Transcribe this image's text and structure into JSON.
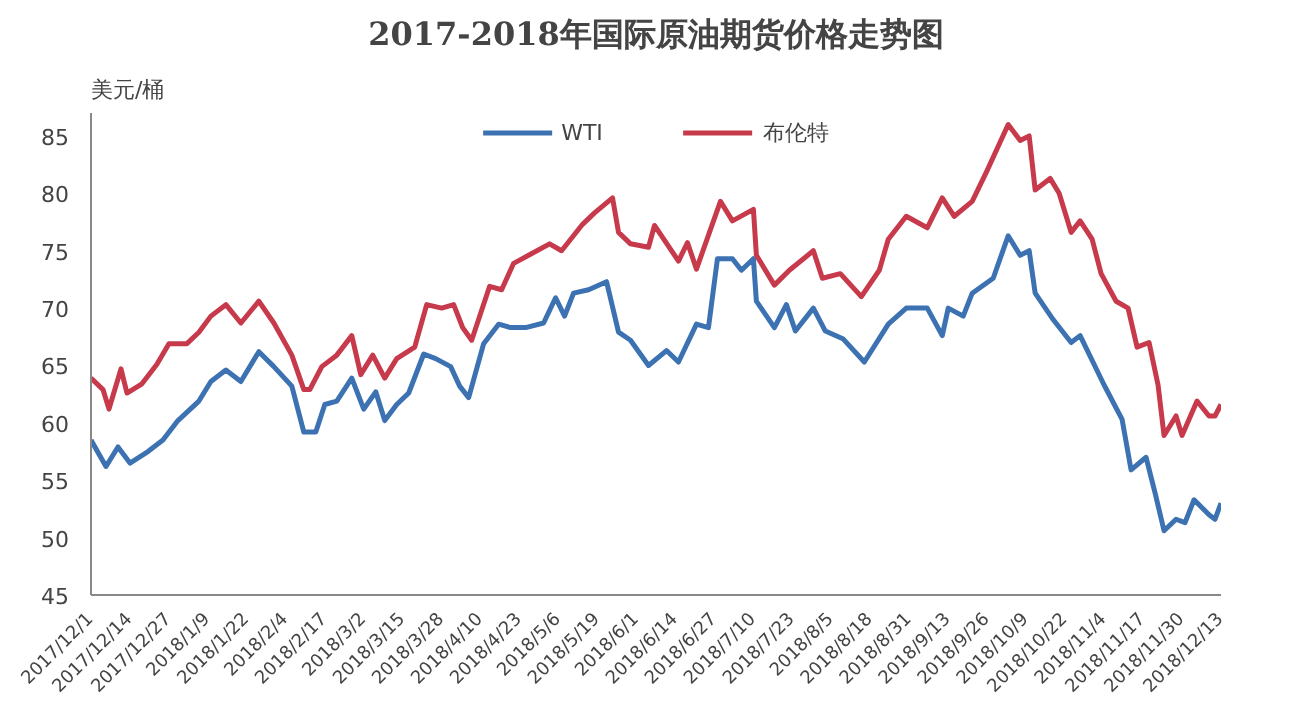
{
  "chart_data": {
    "type": "line",
    "title": "2017-2018年国际原油期货价格走势图",
    "ylabel": "美元/桶",
    "legend": "top",
    "grid": false,
    "line_style": "solid",
    "marker": "none",
    "xlim": [
      "2017-12-01",
      "2018-12-13"
    ],
    "ylim": [
      45,
      87
    ],
    "yticks": [
      45,
      50,
      55,
      60,
      65,
      70,
      75,
      80,
      85
    ],
    "xticks": [
      {
        "value": "2017-12-01",
        "label": "2017/12/1"
      },
      {
        "value": "2017-12-14",
        "label": "2017/12/14"
      },
      {
        "value": "2017-12-27",
        "label": "2017/12/27"
      },
      {
        "value": "2018-01-09",
        "label": "2018/1/9"
      },
      {
        "value": "2018-01-22",
        "label": "2018/1/22"
      },
      {
        "value": "2018-02-04",
        "label": "2018/2/4"
      },
      {
        "value": "2018-02-17",
        "label": "2018/2/17"
      },
      {
        "value": "2018-03-02",
        "label": "2018/3/2"
      },
      {
        "value": "2018-03-15",
        "label": "2018/3/15"
      },
      {
        "value": "2018-03-28",
        "label": "2018/3/28"
      },
      {
        "value": "2018-04-10",
        "label": "2018/4/10"
      },
      {
        "value": "2018-04-23",
        "label": "2018/4/23"
      },
      {
        "value": "2018-05-06",
        "label": "2018/5/6"
      },
      {
        "value": "2018-05-19",
        "label": "2018/5/19"
      },
      {
        "value": "2018-06-01",
        "label": "2018/6/1"
      },
      {
        "value": "2018-06-14",
        "label": "2018/6/14"
      },
      {
        "value": "2018-06-27",
        "label": "2018/6/27"
      },
      {
        "value": "2018-07-10",
        "label": "2018/7/10"
      },
      {
        "value": "2018-07-23",
        "label": "2018/7/23"
      },
      {
        "value": "2018-08-05",
        "label": "2018/8/5"
      },
      {
        "value": "2018-08-18",
        "label": "2018/8/18"
      },
      {
        "value": "2018-08-31",
        "label": "2018/8/31"
      },
      {
        "value": "2018-09-13",
        "label": "2018/9/13"
      },
      {
        "value": "2018-09-26",
        "label": "2018/9/26"
      },
      {
        "value": "2018-10-09",
        "label": "2018/10/9"
      },
      {
        "value": "2018-10-22",
        "label": "2018/10/22"
      },
      {
        "value": "2018-11-04",
        "label": "2018/11/4"
      },
      {
        "value": "2018-11-17",
        "label": "2018/11/17"
      },
      {
        "value": "2018-11-30",
        "label": "2018/11/30"
      },
      {
        "value": "2018-12-13",
        "label": "2018/12/13"
      }
    ],
    "series": [
      {
        "name": "WTI",
        "color": "#3d72b2",
        "x": [
          "2017-12-01",
          "2017-12-06",
          "2017-12-10",
          "2017-12-14",
          "2017-12-20",
          "2017-12-25",
          "2017-12-30",
          "2018-01-06",
          "2018-01-10",
          "2018-01-15",
          "2018-01-20",
          "2018-01-26",
          "2018-01-31",
          "2018-02-06",
          "2018-02-10",
          "2018-02-14",
          "2018-02-17",
          "2018-02-21",
          "2018-02-26",
          "2018-03-02",
          "2018-03-06",
          "2018-03-09",
          "2018-03-13",
          "2018-03-17",
          "2018-03-22",
          "2018-03-26",
          "2018-03-31",
          "2018-04-03",
          "2018-04-06",
          "2018-04-11",
          "2018-04-16",
          "2018-04-20",
          "2018-04-25",
          "2018-05-01",
          "2018-05-05",
          "2018-05-08",
          "2018-05-11",
          "2018-05-16",
          "2018-05-22",
          "2018-05-26",
          "2018-05-30",
          "2018-06-05",
          "2018-06-11",
          "2018-06-15",
          "2018-06-21",
          "2018-06-25",
          "2018-06-28",
          "2018-07-03",
          "2018-07-06",
          "2018-07-10",
          "2018-07-11",
          "2018-07-17",
          "2018-07-21",
          "2018-07-24",
          "2018-07-30",
          "2018-08-03",
          "2018-08-09",
          "2018-08-16",
          "2018-08-24",
          "2018-08-30",
          "2018-09-06",
          "2018-09-11",
          "2018-09-13",
          "2018-09-18",
          "2018-09-21",
          "2018-09-28",
          "2018-10-03",
          "2018-10-07",
          "2018-10-10",
          "2018-10-12",
          "2018-10-18",
          "2018-10-24",
          "2018-10-27",
          "2018-11-04",
          "2018-11-10",
          "2018-11-13",
          "2018-11-18",
          "2018-11-21",
          "2018-11-24",
          "2018-11-28",
          "2018-12-01",
          "2018-12-04",
          "2018-12-09",
          "2018-12-11",
          "2018-12-13"
        ],
        "values": [
          58.5,
          56.2,
          57.9,
          56.5,
          57.5,
          58.5,
          60.2,
          61.9,
          63.6,
          64.6,
          63.6,
          66.2,
          64.9,
          63.2,
          59.2,
          59.2,
          61.6,
          61.9,
          63.9,
          61.2,
          62.7,
          60.2,
          61.6,
          62.6,
          66.0,
          65.6,
          64.9,
          63.2,
          62.2,
          66.9,
          68.6,
          68.3,
          68.3,
          68.7,
          70.9,
          69.3,
          71.3,
          71.6,
          72.3,
          67.9,
          67.2,
          65.0,
          66.3,
          65.3,
          68.6,
          68.3,
          74.3,
          74.3,
          73.3,
          74.3,
          70.6,
          68.3,
          70.3,
          68.0,
          70.0,
          68.0,
          67.3,
          65.3,
          68.6,
          70.0,
          70.0,
          67.6,
          70.0,
          69.3,
          71.3,
          72.6,
          76.3,
          74.6,
          75.0,
          71.3,
          69.0,
          67.0,
          67.6,
          63.3,
          60.3,
          55.9,
          57.0,
          53.9,
          50.6,
          51.6,
          51.3,
          53.3,
          52.0,
          51.6,
          53.0
        ]
      },
      {
        "name": "布伦特",
        "color": "#c73a4b",
        "x": [
          "2017-12-01",
          "2017-12-05",
          "2017-12-07",
          "2017-12-11",
          "2017-12-13",
          "2017-12-18",
          "2017-12-23",
          "2017-12-27",
          "2018-01-02",
          "2018-01-06",
          "2018-01-10",
          "2018-01-15",
          "2018-01-20",
          "2018-01-26",
          "2018-01-31",
          "2018-02-06",
          "2018-02-10",
          "2018-02-12",
          "2018-02-16",
          "2018-02-21",
          "2018-02-26",
          "2018-03-01",
          "2018-03-05",
          "2018-03-09",
          "2018-03-13",
          "2018-03-19",
          "2018-03-23",
          "2018-03-28",
          "2018-04-01",
          "2018-04-04",
          "2018-04-07",
          "2018-04-13",
          "2018-04-17",
          "2018-04-21",
          "2018-04-26",
          "2018-05-03",
          "2018-05-07",
          "2018-05-14",
          "2018-05-18",
          "2018-05-24",
          "2018-05-26",
          "2018-05-30",
          "2018-06-05",
          "2018-06-07",
          "2018-06-15",
          "2018-06-18",
          "2018-06-21",
          "2018-06-29",
          "2018-07-03",
          "2018-07-10",
          "2018-07-11",
          "2018-07-17",
          "2018-07-22",
          "2018-07-30",
          "2018-08-02",
          "2018-08-08",
          "2018-08-15",
          "2018-08-21",
          "2018-08-24",
          "2018-08-30",
          "2018-09-06",
          "2018-09-11",
          "2018-09-15",
          "2018-09-21",
          "2018-09-26",
          "2018-10-03",
          "2018-10-07",
          "2018-10-10",
          "2018-10-12",
          "2018-10-17",
          "2018-10-20",
          "2018-10-24",
          "2018-10-27",
          "2018-10-31",
          "2018-11-03",
          "2018-11-08",
          "2018-11-12",
          "2018-11-15",
          "2018-11-19",
          "2018-11-22",
          "2018-11-24",
          "2018-11-28",
          "2018-11-30",
          "2018-12-05",
          "2018-12-09",
          "2018-12-11",
          "2018-12-13"
        ],
        "values": [
          63.9,
          62.9,
          61.2,
          64.7,
          62.6,
          63.4,
          65.1,
          66.9,
          66.9,
          67.9,
          69.3,
          70.3,
          68.7,
          70.6,
          68.7,
          65.9,
          62.9,
          62.9,
          64.9,
          65.9,
          67.6,
          64.2,
          65.9,
          63.9,
          65.6,
          66.6,
          70.3,
          70.0,
          70.3,
          68.3,
          67.2,
          71.9,
          71.6,
          73.9,
          74.6,
          75.6,
          75.0,
          77.3,
          78.3,
          79.6,
          76.6,
          75.6,
          75.3,
          77.2,
          74.1,
          75.7,
          73.4,
          79.3,
          77.6,
          78.6,
          74.6,
          72.0,
          73.3,
          75.0,
          72.6,
          73.0,
          71.0,
          73.3,
          76.0,
          78.0,
          77.0,
          79.6,
          78.0,
          79.3,
          82.0,
          86.0,
          84.6,
          85.0,
          80.3,
          81.3,
          80.0,
          76.6,
          77.6,
          76.0,
          73.0,
          70.6,
          70.0,
          66.6,
          67.0,
          63.3,
          58.9,
          60.6,
          58.9,
          61.9,
          60.6,
          60.6,
          61.6
        ]
      }
    ]
  }
}
